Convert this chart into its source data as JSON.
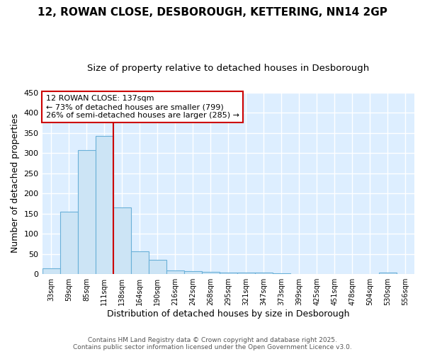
{
  "title1": "12, ROWAN CLOSE, DESBOROUGH, KETTERING, NN14 2GP",
  "title2": "Size of property relative to detached houses in Desborough",
  "xlabel": "Distribution of detached houses by size in Desborough",
  "ylabel": "Number of detached properties",
  "categories": [
    "33sqm",
    "59sqm",
    "85sqm",
    "111sqm",
    "138sqm",
    "164sqm",
    "190sqm",
    "216sqm",
    "242sqm",
    "268sqm",
    "295sqm",
    "321sqm",
    "347sqm",
    "373sqm",
    "399sqm",
    "425sqm",
    "451sqm",
    "478sqm",
    "504sqm",
    "530sqm",
    "556sqm"
  ],
  "values": [
    15,
    155,
    308,
    342,
    165,
    57,
    35,
    10,
    8,
    6,
    3,
    4,
    4,
    2,
    0,
    0,
    0,
    0,
    0,
    3,
    0
  ],
  "bar_color": "#cce4f5",
  "bar_edge_color": "#6ab0d8",
  "vline_color": "#cc0000",
  "annotation_title": "12 ROWAN CLOSE: 137sqm",
  "annotation_line1": "← 73% of detached houses are smaller (799)",
  "annotation_line2": "26% of semi-detached houses are larger (285) →",
  "annotation_box_color": "#cc0000",
  "footer1": "Contains HM Land Registry data © Crown copyright and database right 2025.",
  "footer2": "Contains public sector information licensed under the Open Government Licence v3.0.",
  "ylim": [
    0,
    450
  ],
  "yticks": [
    0,
    50,
    100,
    150,
    200,
    250,
    300,
    350,
    400,
    450
  ],
  "fig_bg": "#ffffff",
  "plot_bg": "#ddeeff",
  "grid_color": "#ffffff"
}
